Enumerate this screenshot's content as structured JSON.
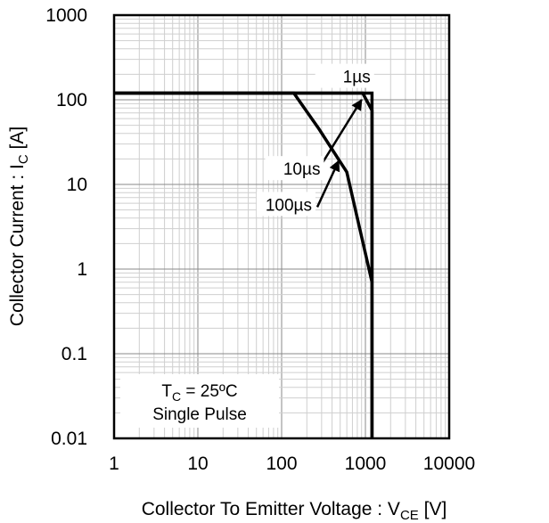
{
  "chart_data": {
    "type": "line",
    "title": "",
    "x_scale": "log",
    "y_scale": "log",
    "xlim": [
      1,
      10000
    ],
    "ylim": [
      0.01,
      1000
    ],
    "grid": true,
    "xlabel": {
      "main": "Collector To Emitter Voltage : V",
      "sub": "CE",
      "unit": " [V]"
    },
    "ylabel": {
      "main": "Collector Current : I",
      "sub": "C",
      "unit": " [A]"
    },
    "x_ticks": [
      {
        "value": 1,
        "label": "1"
      },
      {
        "value": 10,
        "label": "10"
      },
      {
        "value": 100,
        "label": "100"
      },
      {
        "value": 1000,
        "label": "1000"
      },
      {
        "value": 10000,
        "label": "10000"
      }
    ],
    "y_ticks": [
      {
        "value": 0.01,
        "label": "0.01"
      },
      {
        "value": 0.1,
        "label": "0.1"
      },
      {
        "value": 1,
        "label": "1"
      },
      {
        "value": 10,
        "label": "10"
      },
      {
        "value": 100,
        "label": "100"
      },
      {
        "value": 1000,
        "label": "1000"
      }
    ],
    "series": [
      {
        "points": [
          [
            1,
            120
          ],
          [
            1200,
            120
          ],
          [
            1200,
            0.01
          ]
        ]
      },
      {
        "points": [
          [
            1,
            120
          ],
          [
            930,
            120
          ],
          [
            1200,
            75
          ],
          [
            1200,
            0.01
          ]
        ]
      },
      {
        "points": [
          [
            1,
            120
          ],
          [
            140,
            120
          ],
          [
            280,
            45
          ],
          [
            600,
            14
          ],
          [
            1200,
            0.7
          ]
        ]
      }
    ],
    "annotations": [
      {
        "label": "1µs",
        "text_at": [
          1150,
          160
        ],
        "arrow_from": [
          1050,
          160
        ],
        "arrow_to": [
          1050,
          160
        ],
        "has_arrow": false
      },
      {
        "label": "10µs",
        "text_at": [
          290,
          13
        ],
        "arrow_from": [
          230,
          13
        ],
        "arrow_to": [
          900,
          100
        ],
        "has_arrow": true
      },
      {
        "label": "100µs",
        "text_at": [
          230,
          4.9
        ],
        "arrow_from": [
          230,
          4.9
        ],
        "arrow_to": [
          480,
          19
        ],
        "has_arrow": true
      }
    ],
    "condition_box": {
      "line1_main": "T",
      "line1_sub": "C",
      "line1_rest": " = 25ºC",
      "line2": "Single Pulse"
    }
  }
}
